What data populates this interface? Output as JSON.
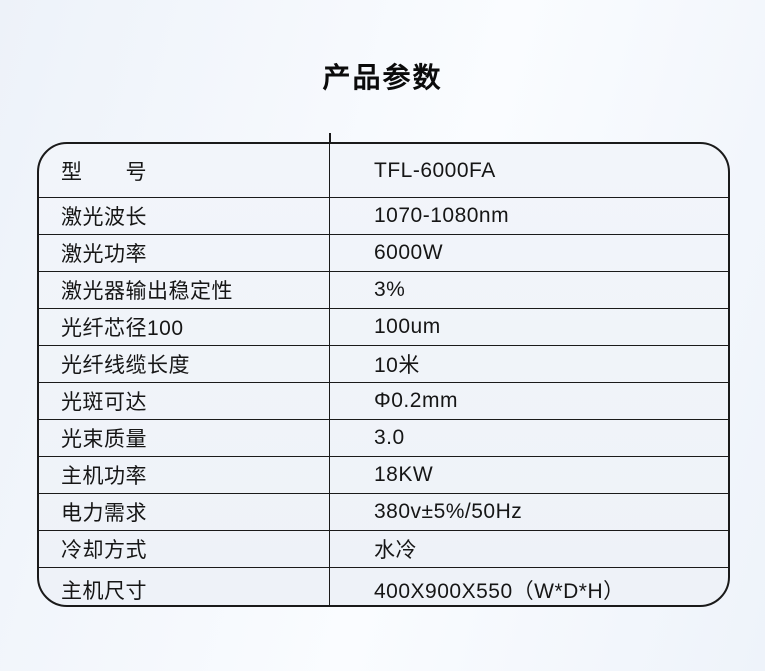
{
  "page": {
    "title": "产品参数"
  },
  "colors": {
    "border": "#1a1a1a",
    "text": "#161616",
    "background_tint": "#edf2f9",
    "table_fill": "#eff3f9"
  },
  "table": {
    "rows": [
      {
        "label": "型　　号",
        "value": "TFL-6000FA"
      },
      {
        "label": "激光波长",
        "value": "1070-1080nm"
      },
      {
        "label": "激光功率",
        "value": "6000W"
      },
      {
        "label": "激光器输出稳定性",
        "value": "3%"
      },
      {
        "label": "光纤芯径100",
        "value": "100um"
      },
      {
        "label": "光纤线缆长度",
        "value": "10米"
      },
      {
        "label": "光斑可达",
        "value": "Φ0.2mm"
      },
      {
        "label": "光束质量",
        "value": "3.0"
      },
      {
        "label": "主机功率",
        "value": "18KW"
      },
      {
        "label": "电力需求",
        "value": "380v±5%/50Hz"
      },
      {
        "label": "冷却方式",
        "value": "水冷"
      },
      {
        "label": "主机尺寸",
        "value": "400X900X550（W*D*H）"
      }
    ]
  }
}
